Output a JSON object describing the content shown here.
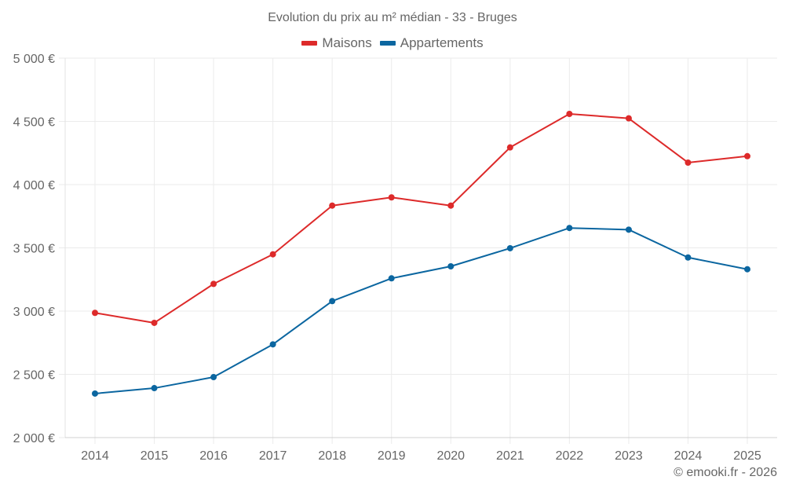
{
  "chart_data": {
    "type": "line",
    "title": "Evolution du prix au m² médian - 33 - Bruges",
    "xlabel": "",
    "ylabel": "",
    "x": [
      "2014",
      "2015",
      "2016",
      "2017",
      "2018",
      "2019",
      "2020",
      "2021",
      "2022",
      "2023",
      "2024",
      "2025"
    ],
    "ylim": [
      2000,
      5000
    ],
    "yticks": [
      2000,
      2500,
      3000,
      3500,
      4000,
      4500,
      5000
    ],
    "ytick_labels": [
      "2 000 €",
      "2 500 €",
      "3 000 €",
      "3 500 €",
      "4 000 €",
      "4 500 €",
      "5 000 €"
    ],
    "grid": true,
    "legend_position": "top-center",
    "series": [
      {
        "name": "Maisons",
        "color": "#dd2a2a",
        "values": [
          2986,
          2907,
          3215,
          3449,
          3834,
          3899,
          3834,
          4294,
          4559,
          4524,
          4174,
          4225
        ]
      },
      {
        "name": "Appartements",
        "color": "#0b66a0",
        "values": [
          2348,
          2391,
          2478,
          2737,
          3079,
          3259,
          3354,
          3497,
          3657,
          3644,
          3424,
          3331
        ]
      }
    ]
  },
  "credit": "© emooki.fr - 2026"
}
